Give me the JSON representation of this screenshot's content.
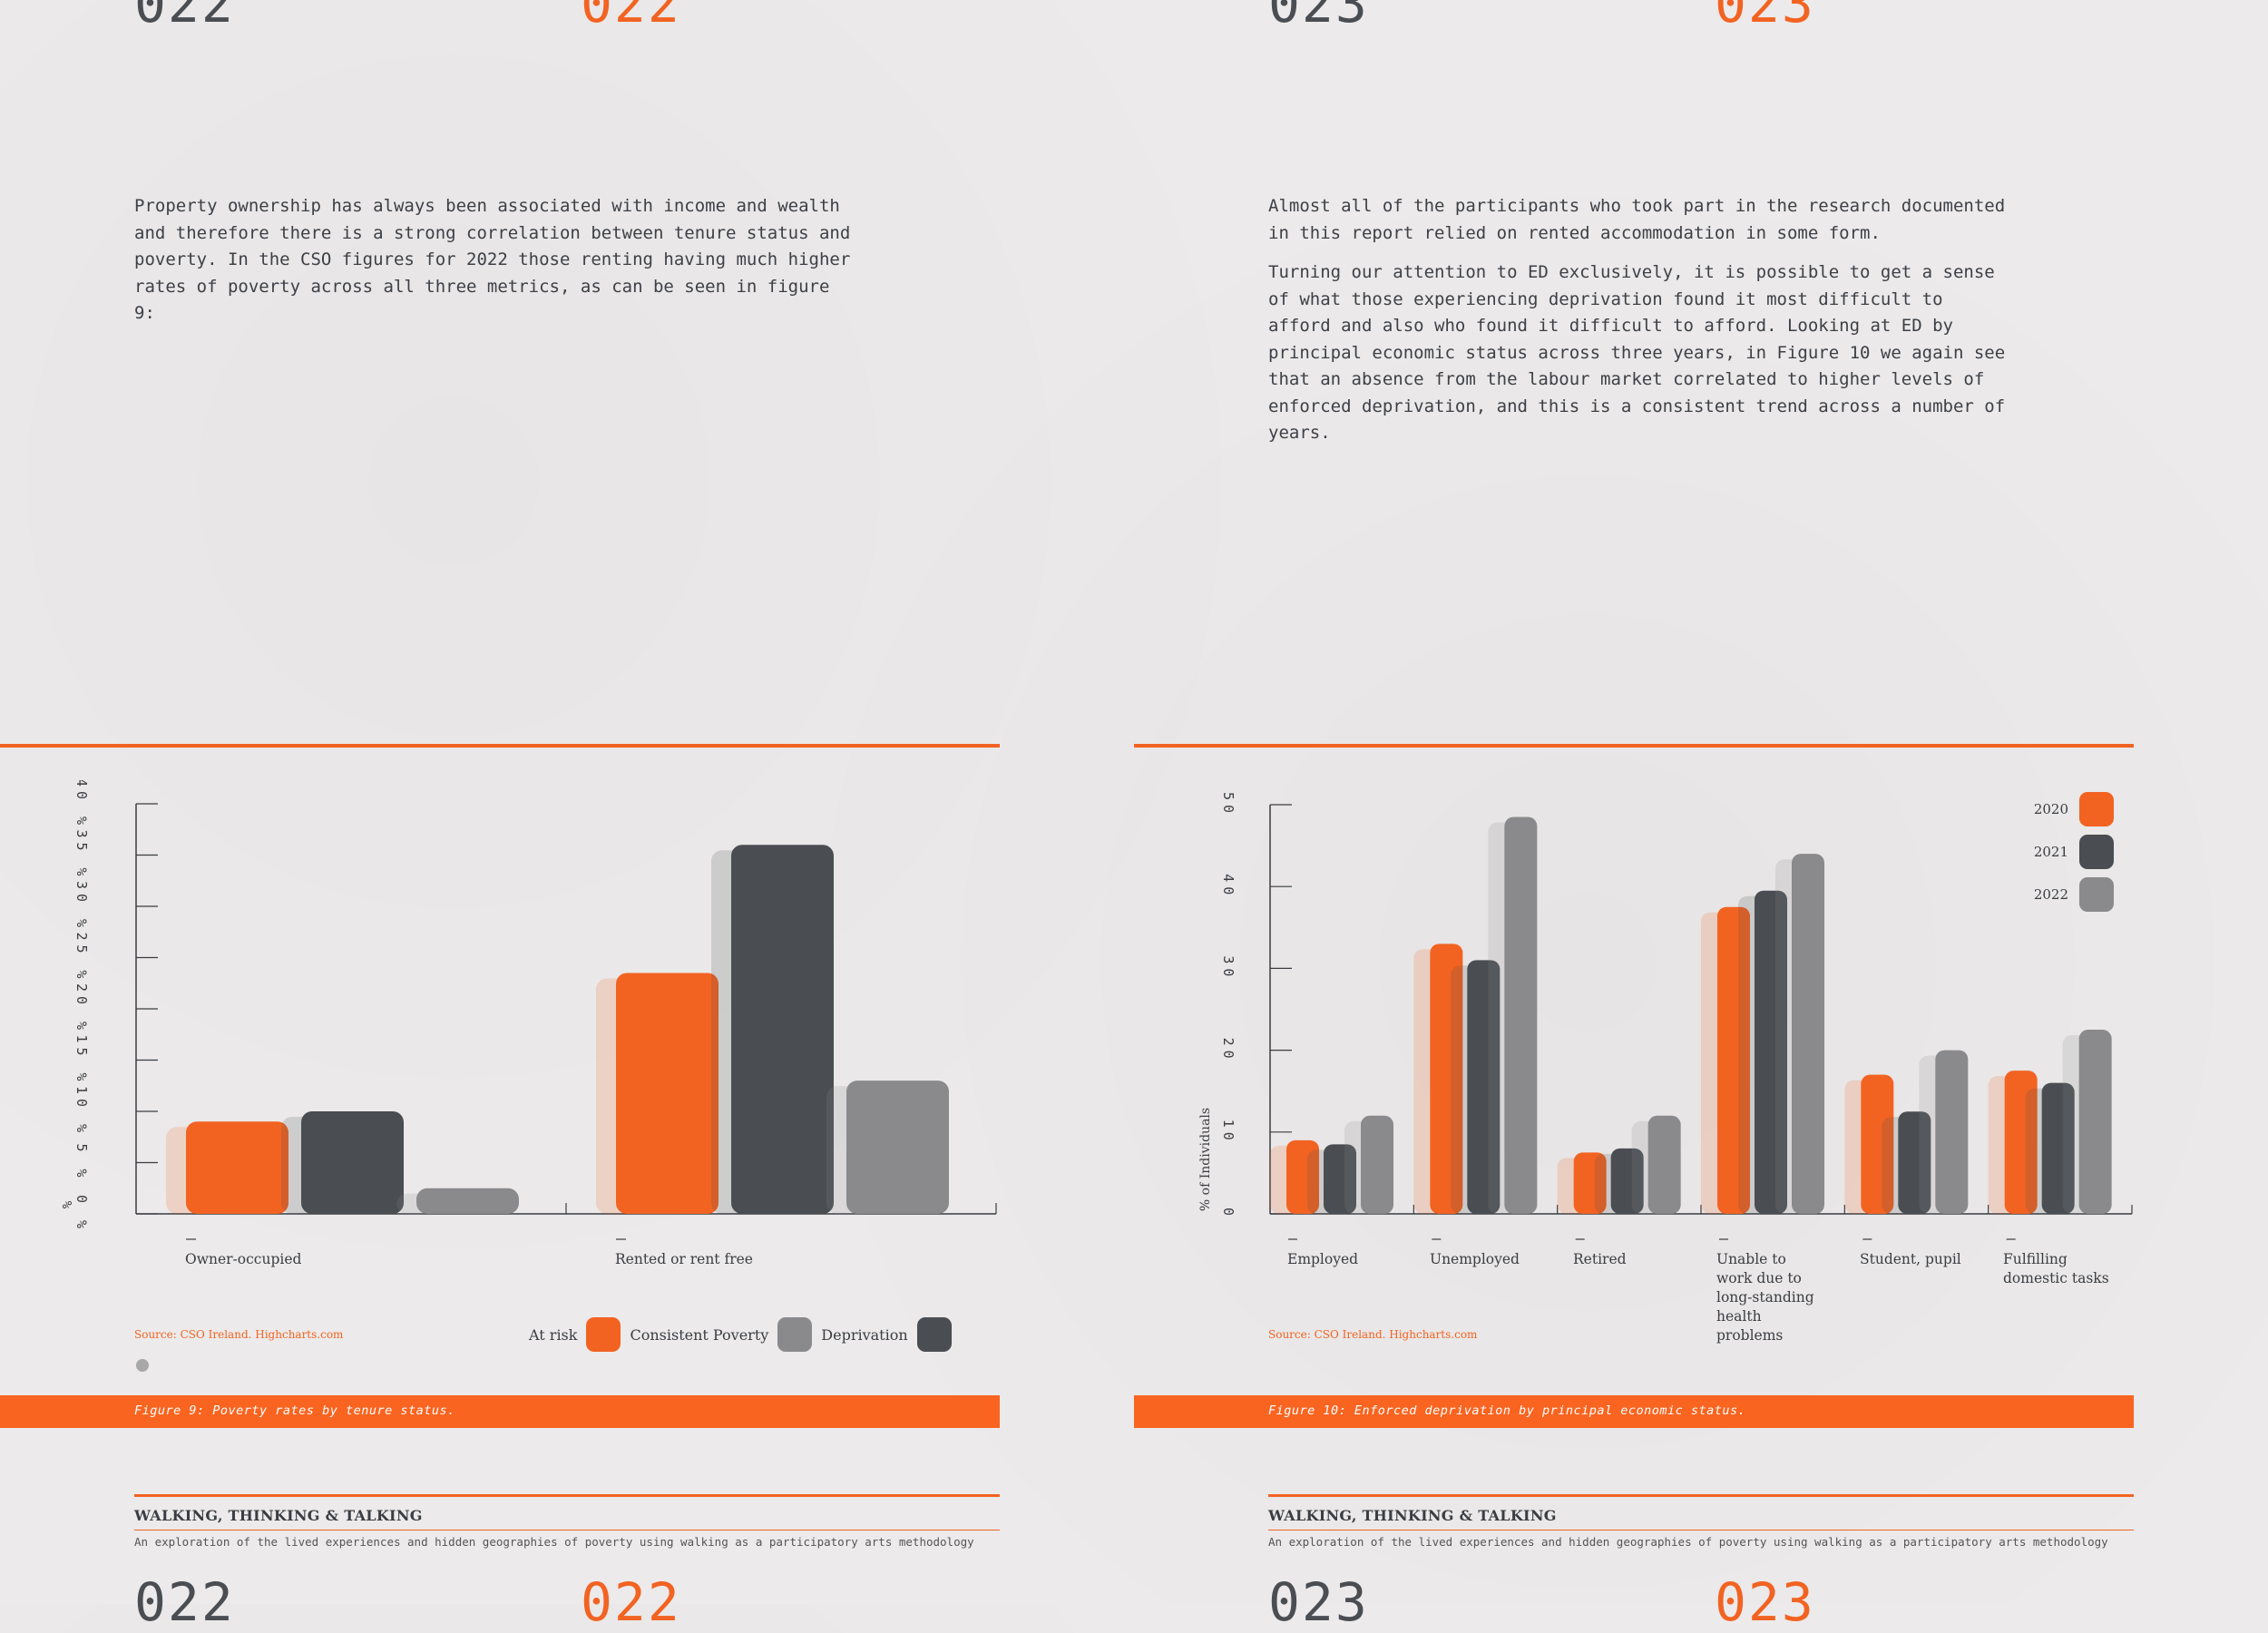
{
  "left_page": {
    "page_number": "022",
    "paragraphs": [
      "Property ownership has always been associated with income and wealth and therefore there is a strong correlation between tenure status and poverty. In the CSO figures for 2022 those renting having much higher rates of poverty across all three metrics, as can be seen in figure 9:"
    ],
    "source": "Source: CSO Ireland. Highcharts.com",
    "caption": "Figure 9: Poverty rates by tenure status.",
    "footer_title": "WALKING, THINKING & TALKING",
    "footer_subtitle": "An exploration of the lived experiences and hidden geographies of poverty using walking as a participatory arts methodology"
  },
  "right_page": {
    "page_number": "023",
    "paragraphs": [
      "Almost all of the participants who took part in the research documented in this report relied on rented accommodation in some form.",
      "Turning our attention to ED exclusively, it is possible to get a sense of what those experiencing deprivation found it most difficult to afford and also who found it difficult to afford. Looking at ED by principal economic status across three years, in Figure 10 we again see that an absence from the labour market correlated to higher levels of enforced deprivation, and this is a consistent trend across a number of years."
    ],
    "source": "Source: CSO Ireland. Highcharts.com",
    "caption": "Figure 10: Enforced deprivation by principal economic status.",
    "footer_title": "WALKING, THINKING & TALKING",
    "footer_subtitle": "An exploration of the lived experiences and hidden geographies of poverty using walking as a participatory arts methodology"
  },
  "colors": {
    "orange": "#f26322",
    "dark": "#4a4d52",
    "gray": "#8a8a8c"
  },
  "chart_data": [
    {
      "type": "bar",
      "title": "",
      "ylabel": "%",
      "ylim": [
        0,
        40
      ],
      "yticks": [
        "0 %",
        "5 %",
        "10 %",
        "15 %",
        "20 %",
        "25 %",
        "30 %",
        "35 %",
        "40 %"
      ],
      "categories": [
        "Owner-occupied",
        "Rented or rent free"
      ],
      "legend_title": "At risk",
      "series": [
        {
          "name": "Consistent Poverty",
          "color": "#f26322",
          "values": [
            9,
            23.5
          ]
        },
        {
          "name": "Deprivation",
          "color": "#8a8a8c",
          "values": [
            10,
            36
          ]
        },
        {
          "name": "",
          "color": "#4a4d52",
          "values": [
            2.5,
            13
          ]
        }
      ],
      "bar_colors": [
        "#f26322",
        "#4a4d52",
        "#8a8a8c"
      ],
      "legend": "bottom-right",
      "grid": false
    },
    {
      "type": "bar",
      "title": "",
      "ylabel": "% of Individuals",
      "ylim": [
        0,
        50
      ],
      "yticks": [
        "0",
        "10",
        "20",
        "30",
        "40",
        "50"
      ],
      "categories": [
        "Employed",
        "Unemployed",
        "Retired",
        "Unable to work due to long-standing health problems",
        "Student, pupil",
        "Fulfilling domestic tasks"
      ],
      "category_lines": [
        [
          "Employed"
        ],
        [
          "Unemployed"
        ],
        [
          "Retired"
        ],
        [
          "Unable to",
          "work due to",
          "long-standing",
          "health",
          "problems"
        ],
        [
          "Student, pupil"
        ],
        [
          "Fulfilling",
          "domestic tasks"
        ]
      ],
      "series": [
        {
          "name": "2020",
          "color": "#f26322",
          "values": [
            9,
            33,
            7.5,
            37.5,
            17,
            17.5
          ]
        },
        {
          "name": "2021",
          "color": "#4a4d52",
          "values": [
            8.5,
            31,
            8,
            39.5,
            12.5,
            16
          ]
        },
        {
          "name": "2022",
          "color": "#8a8a8c",
          "values": [
            12,
            48.5,
            12,
            44,
            20,
            22.5
          ]
        }
      ],
      "legend": "top-right",
      "grid": false
    }
  ]
}
